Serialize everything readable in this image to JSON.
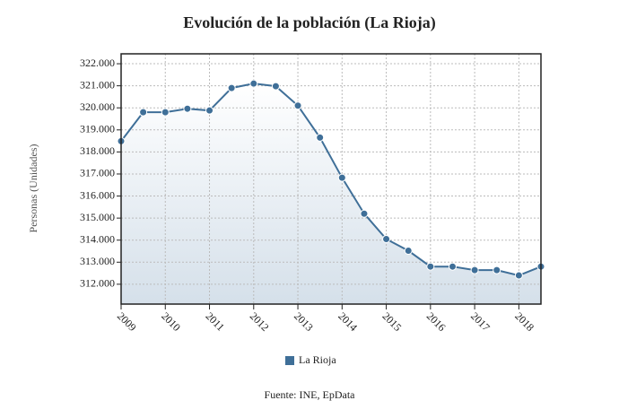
{
  "chart_data": {
    "type": "line",
    "title": "Evolución de la población (La Rioja)",
    "y_label": "Personas (Unidades)",
    "source": "Fuente: INE, EpData",
    "x": [
      2009,
      2009.5,
      2010,
      2010.5,
      2011,
      2011.5,
      2012,
      2012.5,
      2013,
      2013.5,
      2014,
      2014.5,
      2015,
      2015.5,
      2016,
      2016.5,
      2017,
      2017.5,
      2018,
      2018.5
    ],
    "series": [
      {
        "name": "La Rioja",
        "color": "#3f6f98",
        "values": [
          318490,
          319800,
          319800,
          319960,
          319880,
          320900,
          321100,
          320980,
          320100,
          318650,
          316830,
          315200,
          314050,
          313520,
          312800,
          312800,
          312640,
          312640,
          312400,
          312800
        ]
      }
    ],
    "xlim": [
      2009,
      2018.5
    ],
    "xticks": [
      2009,
      2010,
      2011,
      2012,
      2013,
      2014,
      2015,
      2016,
      2017,
      2018
    ],
    "ylim": [
      311100,
      322450
    ],
    "yticks": [
      {
        "value": 312000,
        "label": "312.000"
      },
      {
        "value": 313000,
        "label": "313.000"
      },
      {
        "value": 314000,
        "label": "314.000"
      },
      {
        "value": 315000,
        "label": "315.000"
      },
      {
        "value": 316000,
        "label": "316.000"
      },
      {
        "value": 317000,
        "label": "317.000"
      },
      {
        "value": 318000,
        "label": "318.000"
      },
      {
        "value": 319000,
        "label": "319.000"
      },
      {
        "value": 320000,
        "label": "320.000"
      },
      {
        "value": 321000,
        "label": "321.000"
      },
      {
        "value": 322000,
        "label": "322.000"
      }
    ],
    "grid": true,
    "legend": "bottom"
  }
}
